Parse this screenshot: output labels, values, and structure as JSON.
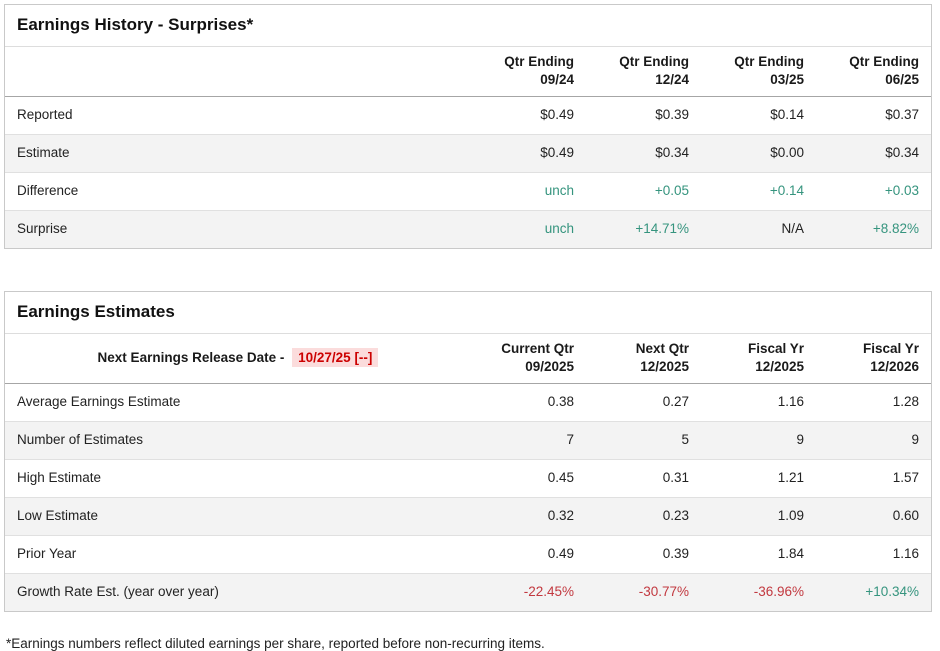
{
  "theme": {
    "positive": "#35947E",
    "negative": "#C2383F",
    "release_date_color": "#CC0000",
    "release_date_bg": "#FBDCDC"
  },
  "history": {
    "title": "Earnings History - Surprises*",
    "columns": [
      {
        "label": "Qtr Ending",
        "period": "09/24"
      },
      {
        "label": "Qtr Ending",
        "period": "12/24"
      },
      {
        "label": "Qtr Ending",
        "period": "03/25"
      },
      {
        "label": "Qtr Ending",
        "period": "06/25"
      }
    ],
    "rows": [
      {
        "label": "Reported",
        "values": [
          "$0.49",
          "$0.39",
          "$0.14",
          "$0.37"
        ]
      },
      {
        "label": "Estimate",
        "values": [
          "$0.49",
          "$0.34",
          "$0.00",
          "$0.34"
        ]
      },
      {
        "label": "Difference",
        "values": [
          "unch",
          "+0.05",
          "+0.14",
          "+0.03"
        ]
      },
      {
        "label": "Surprise",
        "values": [
          "unch",
          "+14.71%",
          "N/A",
          "+8.82%"
        ]
      }
    ]
  },
  "estimates": {
    "title": "Earnings Estimates",
    "release_label": "Next Earnings Release Date -",
    "release_date": "10/27/25 [--]",
    "columns": [
      {
        "label": "Current Qtr",
        "period": "09/2025"
      },
      {
        "label": "Next Qtr",
        "period": "12/2025"
      },
      {
        "label": "Fiscal Yr",
        "period": "12/2025"
      },
      {
        "label": "Fiscal Yr",
        "period": "12/2026"
      }
    ],
    "rows": [
      {
        "label": "Average Earnings Estimate",
        "values": [
          "0.38",
          "0.27",
          "1.16",
          "1.28"
        ]
      },
      {
        "label": "Number of Estimates",
        "values": [
          "7",
          "5",
          "9",
          "9"
        ]
      },
      {
        "label": "High Estimate",
        "values": [
          "0.45",
          "0.31",
          "1.21",
          "1.57"
        ]
      },
      {
        "label": "Low Estimate",
        "values": [
          "0.32",
          "0.23",
          "1.09",
          "0.60"
        ]
      },
      {
        "label": "Prior Year",
        "values": [
          "0.49",
          "0.39",
          "1.84",
          "1.16"
        ]
      },
      {
        "label": "Growth Rate Est. (year over year)",
        "values": [
          "-22.45%",
          "-30.77%",
          "-36.96%",
          "+10.34%"
        ]
      }
    ]
  },
  "footnote": "*Earnings numbers reflect diluted earnings per share, reported before non-recurring items."
}
